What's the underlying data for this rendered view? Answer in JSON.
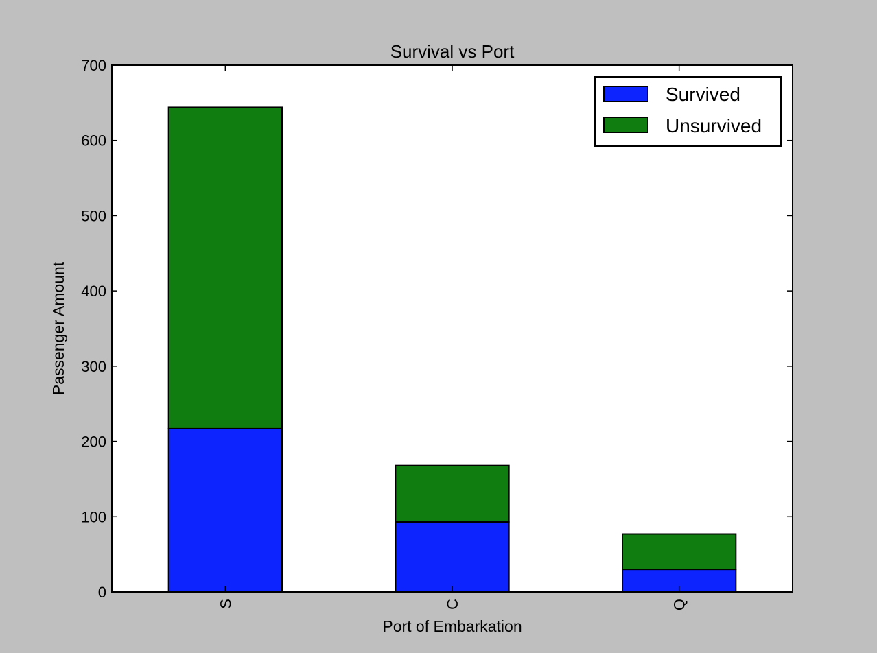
{
  "chart_data": {
    "type": "bar",
    "stacked": true,
    "title": "Survival vs Port",
    "xlabel": "Port of Embarkation",
    "ylabel": "Passenger Amount",
    "categories": [
      "S",
      "C",
      "Q"
    ],
    "series": [
      {
        "name": "Survived",
        "values": [
          217,
          93,
          30
        ],
        "color": "#0d24ff"
      },
      {
        "name": "Unsurvived",
        "values": [
          427,
          75,
          47
        ],
        "color": "#107d10"
      }
    ],
    "ylim": [
      0,
      700
    ],
    "yticks": [
      0,
      100,
      200,
      300,
      400,
      500,
      600,
      700
    ],
    "grid": false,
    "legend_position": "top-right"
  }
}
